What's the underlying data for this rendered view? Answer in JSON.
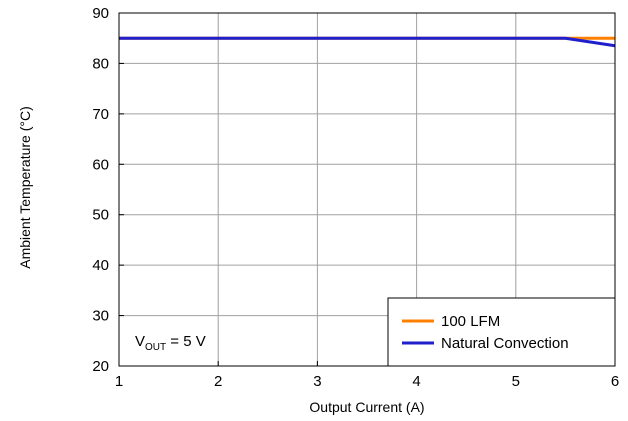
{
  "chart_data": {
    "type": "line",
    "title": "",
    "xlabel": "Output Current (A)",
    "ylabel": "Ambient Temperature (°C)",
    "xlim": [
      1,
      6
    ],
    "ylim": [
      20,
      90
    ],
    "x_ticks": [
      1,
      2,
      3,
      4,
      5,
      6
    ],
    "y_ticks": [
      20,
      30,
      40,
      50,
      60,
      70,
      80,
      90
    ],
    "grid": true,
    "legend_position": "bottom-right",
    "series": [
      {
        "name": "100 LFM",
        "color": "#ff8000",
        "points": [
          [
            1,
            85
          ],
          [
            5.5,
            85
          ],
          [
            6,
            85
          ]
        ]
      },
      {
        "name": "Natural Convection",
        "color": "#1f1fcc",
        "points": [
          [
            1,
            85
          ],
          [
            5.5,
            85
          ],
          [
            6,
            83.5
          ]
        ]
      }
    ],
    "annotation": {
      "main": "V",
      "sub": "OUT",
      "rest": " = 5 V"
    }
  }
}
